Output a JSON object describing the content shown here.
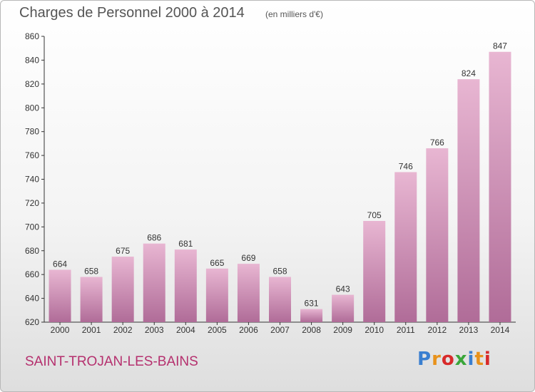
{
  "title": "Charges de Personnel 2000 à 2014",
  "subtitle": "(en milliers d'€)",
  "town": "SAINT-TROJAN-LES-BAINS",
  "logo": {
    "text": "Proxiti",
    "colors": [
      "#3a7fd0",
      "#e8921c",
      "#d82a2a",
      "#3aa63a",
      "#3a7fd0",
      "#e8921c",
      "#d82a2a"
    ]
  },
  "colors": {
    "bar_light": "#e8b6d2",
    "bar_dark": "#b06c98",
    "title": "#555555",
    "town": "#b5306e"
  },
  "chart_data": {
    "type": "bar",
    "title": "Charges de Personnel 2000 à 2014",
    "subtitle": "(en milliers d'€)",
    "categories": [
      "2000",
      "2001",
      "2002",
      "2003",
      "2004",
      "2005",
      "2006",
      "2007",
      "2008",
      "2009",
      "2010",
      "2011",
      "2012",
      "2013",
      "2014"
    ],
    "values": [
      664,
      658,
      675,
      686,
      681,
      665,
      669,
      658,
      631,
      643,
      705,
      746,
      766,
      824,
      847
    ],
    "ylim": [
      620,
      860
    ],
    "yticks": [
      620,
      640,
      660,
      680,
      700,
      720,
      740,
      760,
      780,
      800,
      820,
      840,
      860
    ],
    "grid": false,
    "legend": "none"
  }
}
